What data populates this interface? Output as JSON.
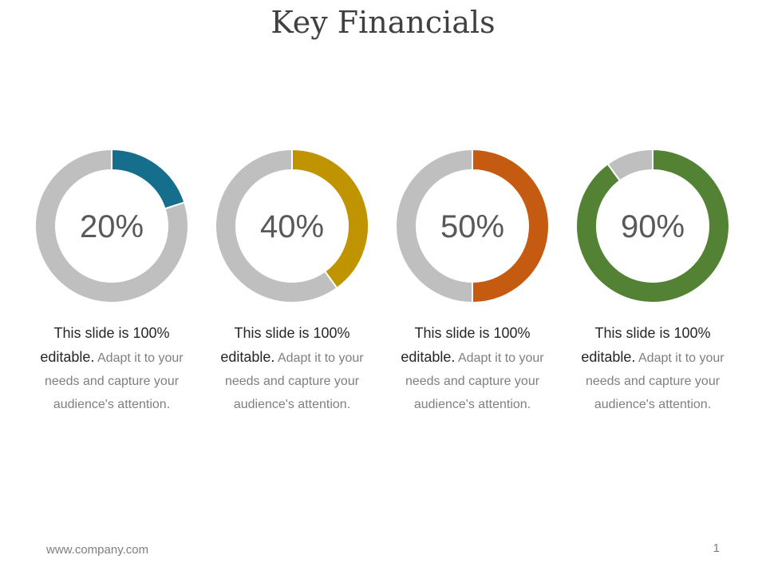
{
  "slide": {
    "title": "Key Financials",
    "footer_url": "www.company.com",
    "page_number": "1"
  },
  "colors": {
    "track": "#bfbfbf",
    "separator": "#ffffff"
  },
  "chart_data": [
    {
      "type": "pie",
      "label": "20%",
      "value": 20,
      "color": "#156f8c"
    },
    {
      "type": "pie",
      "label": "40%",
      "value": 40,
      "color": "#c09400"
    },
    {
      "type": "pie",
      "label": "50%",
      "value": 50,
      "color": "#c55a11"
    },
    {
      "type": "pie",
      "label": "90%",
      "value": 90,
      "color": "#548235"
    }
  ],
  "cards": [
    {
      "lead": "This slide is 100% editable.",
      "body": "Adapt it to your needs and capture your audience's attention."
    },
    {
      "lead": "This slide is 100% editable.",
      "body": "Adapt it to your needs and capture your audience's attention."
    },
    {
      "lead": "This slide is 100% editable.",
      "body": "Adapt it to your needs and capture your audience's attention."
    },
    {
      "lead": "This slide is 100% editable.",
      "body": "Adapt it to your needs and capture your audience's attention."
    }
  ]
}
